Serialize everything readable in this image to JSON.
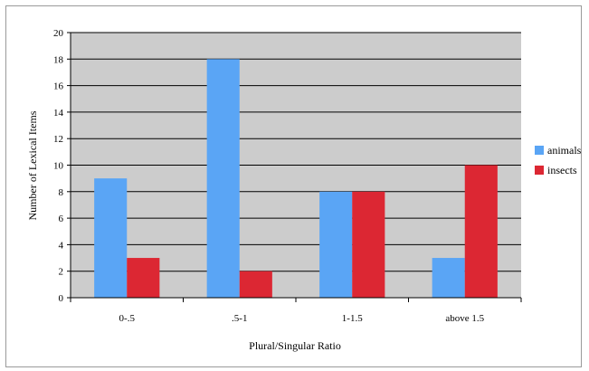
{
  "chart_data": {
    "type": "bar",
    "categories": [
      "0-.5",
      ".5-1",
      "1-1.5",
      "above 1.5"
    ],
    "series": [
      {
        "name": "animals",
        "values": [
          9,
          18,
          8,
          3
        ],
        "color": "#5aa5f5"
      },
      {
        "name": "insects",
        "values": [
          3,
          2,
          8,
          10
        ],
        "color": "#dc2733"
      }
    ],
    "xlabel": "Plural/Singular Ratio",
    "ylabel": "Number of Lexical Items",
    "ylim": [
      0,
      20
    ],
    "yticks": [
      "0",
      "2",
      "4",
      "6",
      "8",
      "10",
      "12",
      "14",
      "16",
      "18",
      "20"
    ],
    "grid": true,
    "plot_background": "#cccccc",
    "legend_position": "right"
  }
}
